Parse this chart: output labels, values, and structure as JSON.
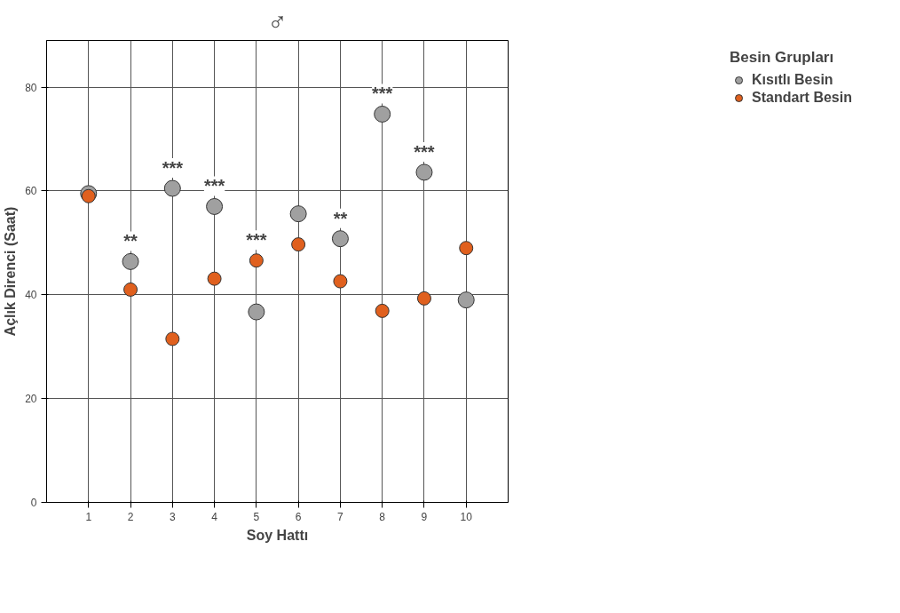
{
  "chart_data": {
    "type": "scatter",
    "title": "♂",
    "xlabel": "Soy Hattı",
    "ylabel": "Açlık Direnci (Saat)",
    "legend_title": "Besin Grupları",
    "x": [
      1,
      2,
      3,
      4,
      5,
      6,
      7,
      8,
      9,
      10
    ],
    "series": [
      {
        "name": "Kısıtlı Besin",
        "color": "#a0a0a0",
        "values": [
          59.5,
          46.4,
          60.5,
          57.0,
          36.7,
          55.6,
          50.8,
          74.8,
          63.6,
          39.0
        ]
      },
      {
        "name": "Standart Besin",
        "color": "#e0601e",
        "values": [
          59.0,
          41.0,
          31.5,
          43.1,
          46.6,
          49.7,
          42.6,
          36.9,
          39.3,
          49.0
        ]
      }
    ],
    "annotations": [
      {
        "text": "**",
        "x": 2,
        "y": 46.4
      },
      {
        "text": "***",
        "x": 3,
        "y": 60.5
      },
      {
        "text": "***",
        "x": 4,
        "y": 57.0
      },
      {
        "text": "***",
        "x": 5,
        "y": 46.6
      },
      {
        "text": "**",
        "x": 7,
        "y": 50.8
      },
      {
        "text": "***",
        "x": 8,
        "y": 74.8
      },
      {
        "text": "***",
        "x": 9,
        "y": 63.6
      }
    ],
    "xlim": [
      0,
      11
    ],
    "ylim": [
      0,
      89
    ],
    "xticks": [
      1,
      2,
      3,
      4,
      5,
      6,
      7,
      8,
      9,
      10
    ],
    "yticks": [
      0,
      20,
      40,
      60,
      80
    ],
    "grid": true,
    "legend": "top right",
    "marker": "circle"
  }
}
